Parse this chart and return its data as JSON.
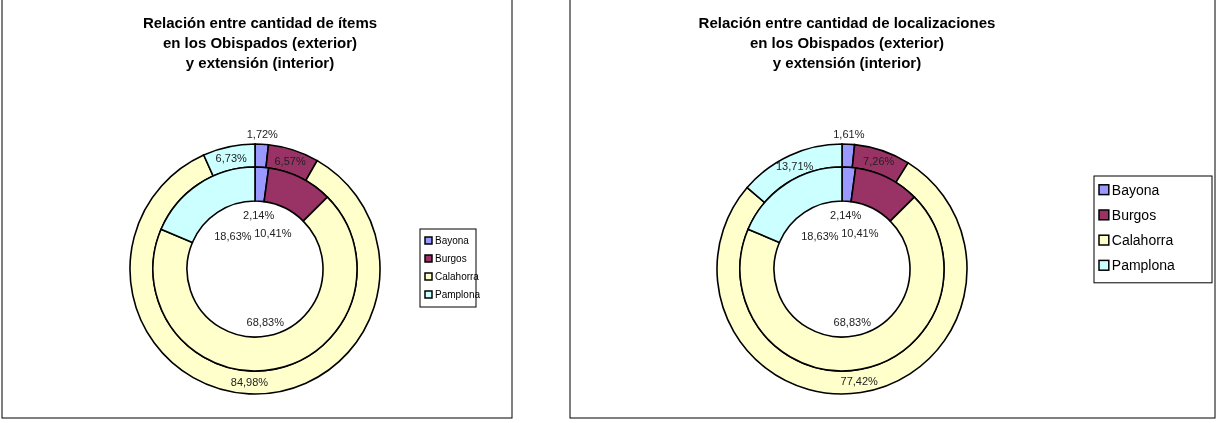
{
  "chart_data": [
    {
      "type": "donut",
      "title": "Relación entre cantidad de ítems\nen los Obispados (exterior)\ny extensión (interior)",
      "categories": [
        "Bayona",
        "Burgos",
        "Calahorra",
        "Pamplona"
      ],
      "colors": [
        "#9999ff",
        "#993366",
        "#ffffcc",
        "#ccffff"
      ],
      "legend": "right",
      "series": [
        {
          "values": [
            1.72,
            6.57,
            84.98,
            6.73
          ],
          "value_labels": [
            "1,72%",
            "6,57%",
            "84,98%",
            "6,73%"
          ]
        },
        {
          "values": [
            2.14,
            10.41,
            68.83,
            18.63
          ],
          "value_labels": [
            "2,14%",
            "10,41%",
            "68,83%",
            "18,63%"
          ]
        }
      ]
    },
    {
      "type": "donut",
      "title": "Relación entre cantidad de localizaciones\nen los Obispados (exterior)\ny extensión (interior)",
      "categories": [
        "Bayona",
        "Burgos",
        "Calahorra",
        "Pamplona"
      ],
      "colors": [
        "#9999ff",
        "#993366",
        "#ffffcc",
        "#ccffff"
      ],
      "legend": "right",
      "series": [
        {
          "values": [
            1.61,
            7.26,
            77.42,
            13.71
          ],
          "value_labels": [
            "1,61%",
            "7,26%",
            "77,42%",
            "13,71%"
          ]
        },
        {
          "values": [
            2.14,
            10.41,
            68.83,
            18.63
          ],
          "value_labels": [
            "2,14%",
            "10,41%",
            "68,83%",
            "18,63%"
          ]
        }
      ]
    }
  ]
}
